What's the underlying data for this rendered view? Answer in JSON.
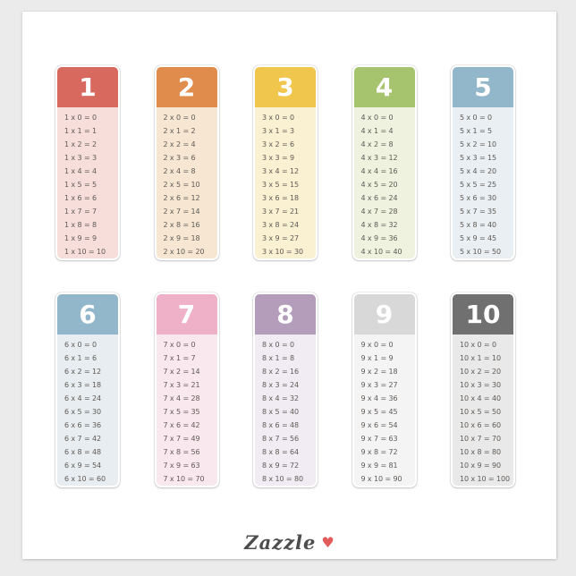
{
  "colors": {
    "page_background": "#ebebeb",
    "sticker_background": "#ffffff",
    "fact_text": "#5f5a56",
    "header_number_text": "#ffffff",
    "brand_text": "#4d4d4d",
    "heart": "#e25c5c"
  },
  "watermark": {
    "brand": "Zazzle",
    "heart": "♥"
  },
  "cards": [
    {
      "number": "1",
      "header_color": "#d7695f",
      "body_color": "#f7dedb",
      "facts": [
        "1 x 0 = 0",
        "1 x 1 = 1",
        "1 x 2 = 2",
        "1 x 3 = 3",
        "1 x 4 = 4",
        "1 x 5 = 5",
        "1 x 6 = 6",
        "1 x 7 = 7",
        "1 x 8 = 8",
        "1 x 9 = 9",
        "1 x 10 = 10"
      ]
    },
    {
      "number": "2",
      "header_color": "#e08c4d",
      "body_color": "#f7e7d2",
      "facts": [
        "2 x 0 = 0",
        "2 x 1 = 2",
        "2 x 2 = 4",
        "2 x 3 = 6",
        "2 x 4 = 8",
        "2 x 5 = 10",
        "2 x 6 = 12",
        "2 x 7 = 14",
        "2 x 8 = 16",
        "2 x 9 = 18",
        "2 x 10 = 20"
      ]
    },
    {
      "number": "3",
      "header_color": "#f1c64d",
      "body_color": "#faf0d2",
      "facts": [
        "3 x 0 = 0",
        "3 x 1 = 3",
        "3 x 2 = 6",
        "3 x 3 = 9",
        "3 x 4 = 12",
        "3 x 5 = 15",
        "3 x 6 = 18",
        "3 x 7 = 21",
        "3 x 8 = 24",
        "3 x 9 = 27",
        "3 x 10 = 30"
      ]
    },
    {
      "number": "4",
      "header_color": "#a6c36d",
      "body_color": "#eef2df",
      "facts": [
        "4 x 0 = 0",
        "4 x 1 = 4",
        "4 x 2 = 8",
        "4 x 3 = 12",
        "4 x 4 = 16",
        "4 x 5 = 20",
        "4 x 6 = 24",
        "4 x 7 = 28",
        "4 x 8 = 32",
        "4 x 9 = 36",
        "4 x 10 = 40"
      ]
    },
    {
      "number": "5",
      "header_color": "#92b7ca",
      "body_color": "#e9eff3",
      "facts": [
        "5 x 0 = 0",
        "5 x 1 = 5",
        "5 x 2 = 10",
        "5 x 3 = 15",
        "5 x 4 = 20",
        "5 x 5 = 25",
        "5 x 6 = 30",
        "5 x 7 = 35",
        "5 x 8 = 40",
        "5 x 9 = 45",
        "5 x 10 = 50"
      ]
    },
    {
      "number": "6",
      "header_color": "#92b7ca",
      "body_color": "#e7edf0",
      "facts": [
        "6 x 0 = 0",
        "6 x 1 = 6",
        "6 x 2 = 12",
        "6 x 3 = 18",
        "6 x 4 = 24",
        "6 x 5 = 30",
        "6 x 6 = 36",
        "6 x 7 = 42",
        "6 x 8 = 48",
        "6 x 9 = 54",
        "6 x 10 = 60"
      ]
    },
    {
      "number": "7",
      "header_color": "#efb1c8",
      "body_color": "#fae8ef",
      "facts": [
        "7 x 0 = 0",
        "7 x 1 = 7",
        "7 x 2 = 14",
        "7 x 3 = 21",
        "7 x 4 = 28",
        "7 x 5 = 35",
        "7 x 6 = 42",
        "7 x 7 = 49",
        "7 x 8 = 56",
        "7 x 9 = 63",
        "7 x 10 = 70"
      ]
    },
    {
      "number": "8",
      "header_color": "#b39dba",
      "body_color": "#f1ecf3",
      "facts": [
        "8 x 0 = 0",
        "8 x 1 = 8",
        "8 x 2 = 16",
        "8 x 3 = 24",
        "8 x 4 = 32",
        "8 x 5 = 40",
        "8 x 6 = 48",
        "8 x 7 = 56",
        "8 x 8 = 64",
        "8 x 9 = 72",
        "8 x 10 = 80"
      ]
    },
    {
      "number": "9",
      "header_color": "#d8d8d8",
      "body_color": "#f4f4f4",
      "facts": [
        "9 x 0 = 0",
        "9 x 1 = 9",
        "9 x 2 = 18",
        "9 x 3 = 27",
        "9 x 4 = 36",
        "9 x 5 = 45",
        "9 x 6 = 54",
        "9 x 7 = 63",
        "9 x 8 = 72",
        "9 x 9 = 81",
        "9 x 10 = 90"
      ]
    },
    {
      "number": "10",
      "header_color": "#707070",
      "body_color": "#e9e9e9",
      "facts": [
        "10 x 0 = 0",
        "10 x 1 = 10",
        "10 x 2 = 20",
        "10 x 3 = 30",
        "10 x 4 = 40",
        "10 x 5 = 50",
        "10 x 6 = 60",
        "10 x 7 = 70",
        "10 x 8 = 80",
        "10 x 9 = 90",
        "10 x 10 = 100"
      ]
    }
  ]
}
